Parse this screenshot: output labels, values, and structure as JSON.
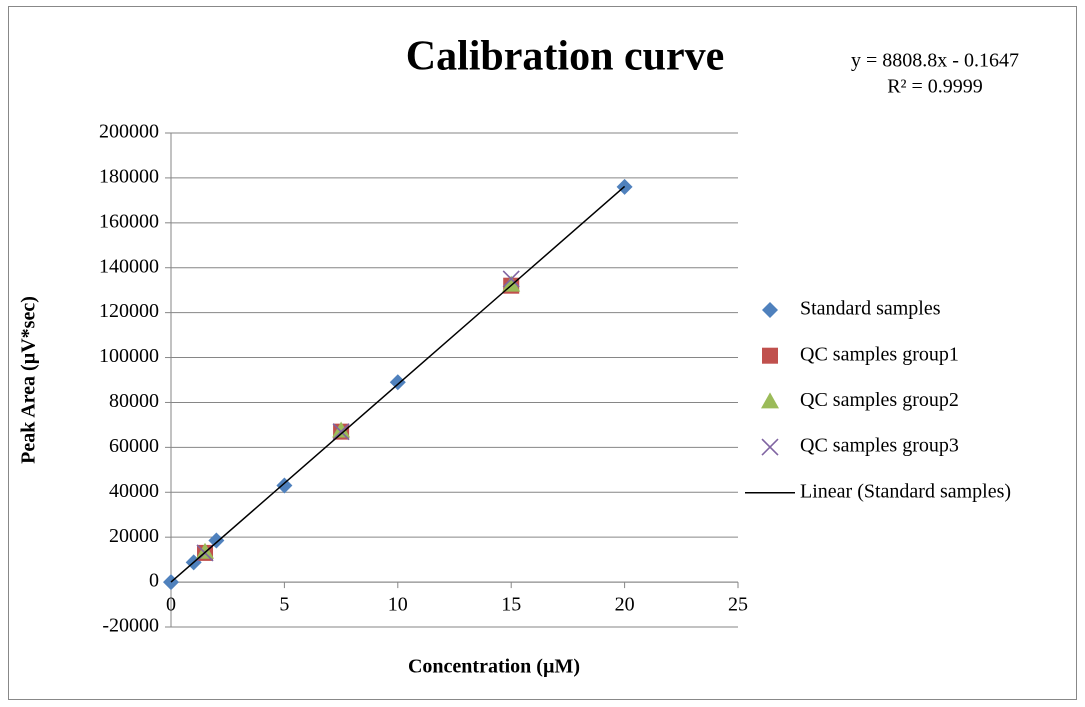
{
  "chart_data": {
    "type": "scatter",
    "title": "Calibration curve",
    "annotations": [
      "y = 8808.8x - 0.1647",
      "R² = 0.9999"
    ],
    "x_label": "Concentration (µM)",
    "y_label": "Peak Area (µV*sec)",
    "xlim": [
      0,
      25
    ],
    "xticks": [
      0,
      5,
      10,
      15,
      20,
      25
    ],
    "ylim": [
      -20000,
      200000
    ],
    "yticks": [
      -20000,
      0,
      20000,
      40000,
      60000,
      80000,
      100000,
      120000,
      140000,
      160000,
      180000,
      200000
    ],
    "grid": true,
    "legend": "right",
    "series": [
      {
        "name": "Standard samples",
        "color": "#4f81bd",
        "marker": "diamond",
        "x": [
          0,
          1,
          2,
          5,
          10,
          20
        ],
        "values": [
          0,
          8800,
          18500,
          43000,
          89000,
          176000
        ]
      },
      {
        "name": "QC samples group1",
        "color": "#c0504d",
        "marker": "square",
        "x": [
          1.5,
          7.5,
          15
        ],
        "values": [
          13000,
          67000,
          132000
        ]
      },
      {
        "name": "QC samples group2",
        "color": "#9bbb59",
        "marker": "triangle",
        "x": [
          1.5,
          7.5,
          15
        ],
        "values": [
          13500,
          67500,
          132500
        ]
      },
      {
        "name": "QC samples group3",
        "color": "#8064a2",
        "marker": "cross",
        "x": [
          1.5,
          7.5,
          15
        ],
        "values": [
          13000,
          67000,
          135000
        ]
      },
      {
        "name": "Linear (Standard samples)",
        "color": "#000000",
        "marker": "line",
        "x": [
          0,
          20
        ],
        "values": [
          0,
          176176
        ]
      }
    ]
  }
}
